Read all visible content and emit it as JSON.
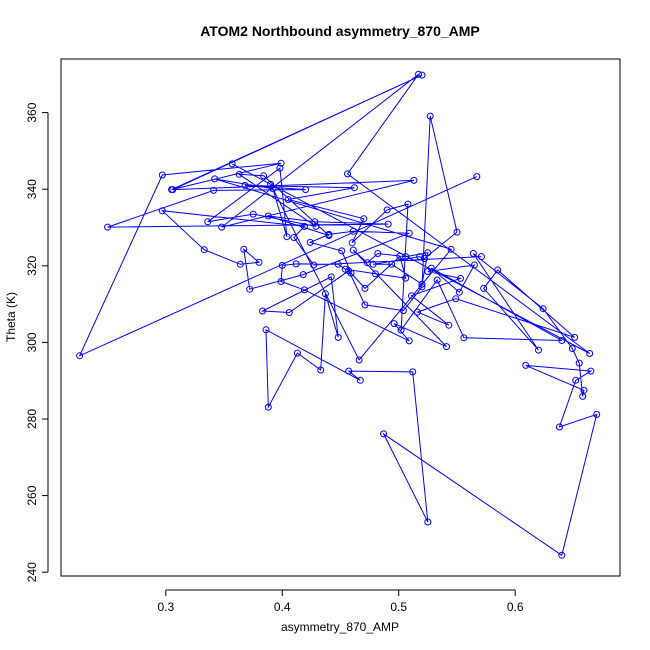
{
  "chart_data": {
    "type": "line",
    "title": "ATOM2 Northbound asymmetry_870_AMP",
    "xlabel": "asymmetry_870_AMP",
    "ylabel": "Theta (K)",
    "xlim": [
      0.21,
      0.69
    ],
    "ylim": [
      239,
      374
    ],
    "xticks": [
      0.3,
      0.4,
      0.5,
      0.6
    ],
    "xtick_labels": [
      "0.3",
      "0.4",
      "0.5",
      "0.6"
    ],
    "yticks": [
      240,
      260,
      280,
      300,
      320,
      340,
      360
    ],
    "ytick_labels": [
      "240",
      "260",
      "280",
      "300",
      "320",
      "340",
      "360"
    ],
    "grid": false,
    "colors": {
      "series": "#0000ff",
      "axes": "#000000",
      "background": "#ffffff"
    },
    "points": [
      [
        0.567,
        343.3
      ],
      [
        0.226,
        296.5
      ],
      [
        0.297,
        343.7
      ],
      [
        0.399,
        346.8
      ],
      [
        0.305,
        339.9
      ],
      [
        0.52,
        369.8
      ],
      [
        0.306,
        339.9
      ],
      [
        0.513,
        342.3
      ],
      [
        0.348,
        330.1
      ],
      [
        0.517,
        370.0
      ],
      [
        0.456,
        344.0
      ],
      [
        0.664,
        297.1
      ],
      [
        0.357,
        346.6
      ],
      [
        0.39,
        341.3
      ],
      [
        0.466,
        295.4
      ],
      [
        0.545,
        324.3
      ],
      [
        0.342,
        342.7
      ],
      [
        0.392,
        340.1
      ],
      [
        0.404,
        327.6
      ],
      [
        0.398,
        345.5
      ],
      [
        0.336,
        331.5
      ],
      [
        0.375,
        333.5
      ],
      [
        0.429,
        330.3
      ],
      [
        0.363,
        343.9
      ],
      [
        0.384,
        343.5
      ],
      [
        0.44,
        327.9
      ],
      [
        0.388,
        333.0
      ],
      [
        0.428,
        331.5
      ],
      [
        0.491,
        330.9
      ],
      [
        0.25,
        330.1
      ],
      [
        0.341,
        339.7
      ],
      [
        0.42,
        339.9
      ],
      [
        0.368,
        341.0
      ],
      [
        0.462,
        340.4
      ],
      [
        0.405,
        337.3
      ],
      [
        0.47,
        332.3
      ],
      [
        0.46,
        326.0
      ],
      [
        0.49,
        334.6
      ],
      [
        0.508,
        336.1
      ],
      [
        0.502,
        303.2
      ],
      [
        0.533,
        316.3
      ],
      [
        0.556,
        301.2
      ],
      [
        0.64,
        300.5
      ],
      [
        0.528,
        319.4
      ],
      [
        0.552,
        313.1
      ],
      [
        0.565,
        320.2
      ],
      [
        0.525,
        318.5
      ],
      [
        0.553,
        316.7
      ],
      [
        0.511,
        312.2
      ],
      [
        0.543,
        304.5
      ],
      [
        0.516,
        307.9
      ],
      [
        0.549,
        311.4
      ],
      [
        0.651,
        301.3
      ],
      [
        0.585,
        318.9
      ],
      [
        0.573,
        314.1
      ],
      [
        0.62,
        298.0
      ],
      [
        0.564,
        323.2
      ],
      [
        0.624,
        308.8
      ],
      [
        0.649,
        298.4
      ],
      [
        0.655,
        294.6
      ],
      [
        0.658,
        285.9
      ],
      [
        0.659,
        287.5
      ],
      [
        0.609,
        294.0
      ],
      [
        0.665,
        292.5
      ],
      [
        0.652,
        290.1
      ],
      [
        0.638,
        277.9
      ],
      [
        0.67,
        281.2
      ],
      [
        0.64,
        244.4
      ],
      [
        0.487,
        276.1
      ],
      [
        0.525,
        253.1
      ],
      [
        0.512,
        292.3
      ],
      [
        0.457,
        292.5
      ],
      [
        0.467,
        290.1
      ],
      [
        0.386,
        303.3
      ],
      [
        0.388,
        283.1
      ],
      [
        0.413,
        297.2
      ],
      [
        0.433,
        292.8
      ],
      [
        0.437,
        312.7
      ],
      [
        0.448,
        301.3
      ],
      [
        0.442,
        317.1
      ],
      [
        0.383,
        308.2
      ],
      [
        0.406,
        307.8
      ],
      [
        0.457,
        318.7
      ],
      [
        0.471,
        309.8
      ],
      [
        0.504,
        308.3
      ],
      [
        0.52,
        314.5
      ],
      [
        0.527,
        359.1
      ],
      [
        0.55,
        328.8
      ],
      [
        0.522,
        321.9
      ],
      [
        0.518,
        322.4
      ],
      [
        0.478,
        320.4
      ],
      [
        0.494,
        320.4
      ],
      [
        0.52,
        315.2
      ],
      [
        0.525,
        323.4
      ],
      [
        0.506,
        322.4
      ],
      [
        0.482,
        323.2
      ],
      [
        0.473,
        320.8
      ],
      [
        0.461,
        324.1
      ],
      [
        0.541,
        298.9
      ],
      [
        0.496,
        304.9
      ],
      [
        0.509,
        300.4
      ],
      [
        0.419,
        313.7
      ],
      [
        0.399,
        315.9
      ],
      [
        0.4,
        320.1
      ],
      [
        0.412,
        320.5
      ],
      [
        0.448,
        320.4
      ],
      [
        0.454,
        319.1
      ],
      [
        0.48,
        317.9
      ],
      [
        0.506,
        316.8
      ],
      [
        0.501,
        322.5
      ],
      [
        0.471,
        314.1
      ],
      [
        0.459,
        318.1
      ],
      [
        0.451,
        323.9
      ],
      [
        0.424,
        326.1
      ],
      [
        0.44,
        328.2
      ],
      [
        0.461,
        329.0
      ],
      [
        0.509,
        328.5
      ],
      [
        0.418,
        317.7
      ],
      [
        0.372,
        313.9
      ],
      [
        0.367,
        324.3
      ],
      [
        0.38,
        320.9
      ],
      [
        0.364,
        320.4
      ],
      [
        0.333,
        324.2
      ],
      [
        0.297,
        334.4
      ],
      [
        0.419,
        330.3
      ],
      [
        0.41,
        327.4
      ],
      [
        0.427,
        320.2
      ],
      [
        0.571,
        322.4
      ]
    ]
  }
}
